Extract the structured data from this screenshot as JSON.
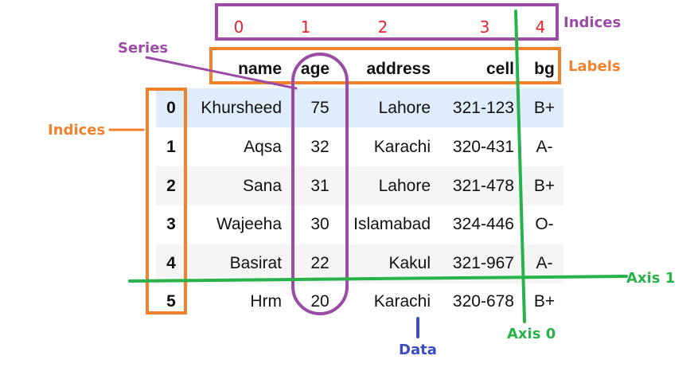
{
  "table": {
    "columns": [
      "name",
      "age",
      "address",
      "cell",
      "bg"
    ],
    "index": [
      "0",
      "1",
      "2",
      "3",
      "4",
      "5"
    ],
    "rows": [
      [
        "Khursheed",
        "75",
        "Lahore",
        "321-123",
        "B+"
      ],
      [
        "Aqsa",
        "32",
        "Karachi",
        "320-431",
        "A-"
      ],
      [
        "Sana",
        "31",
        "Lahore",
        "321-478",
        "B+"
      ],
      [
        "Wajeeha",
        "30",
        "Islamabad",
        "324-446",
        "O-"
      ],
      [
        "Basirat",
        "22",
        "Kakul",
        "321-967",
        "A-"
      ],
      [
        "Hrm",
        "20",
        "Karachi",
        "320-678",
        "B+"
      ]
    ]
  },
  "column_positions": [
    "0",
    "1",
    "2",
    "3",
    "4"
  ],
  "annotations": {
    "top_indices_label": "Indices",
    "labels_label": "Labels",
    "series_label": "Series",
    "left_indices_label": "Indices",
    "axis1_label": "Axis 1",
    "axis0_label": "Axis 0",
    "data_label": "Data"
  },
  "colors": {
    "purple": "#9b4ca5",
    "orange": "#f0822d",
    "green": "#27b24a",
    "blue": "#3b4bc4",
    "red": "#e8222e",
    "highlight_row": "#deedf9",
    "stripe_row": "#f5f5f5"
  }
}
